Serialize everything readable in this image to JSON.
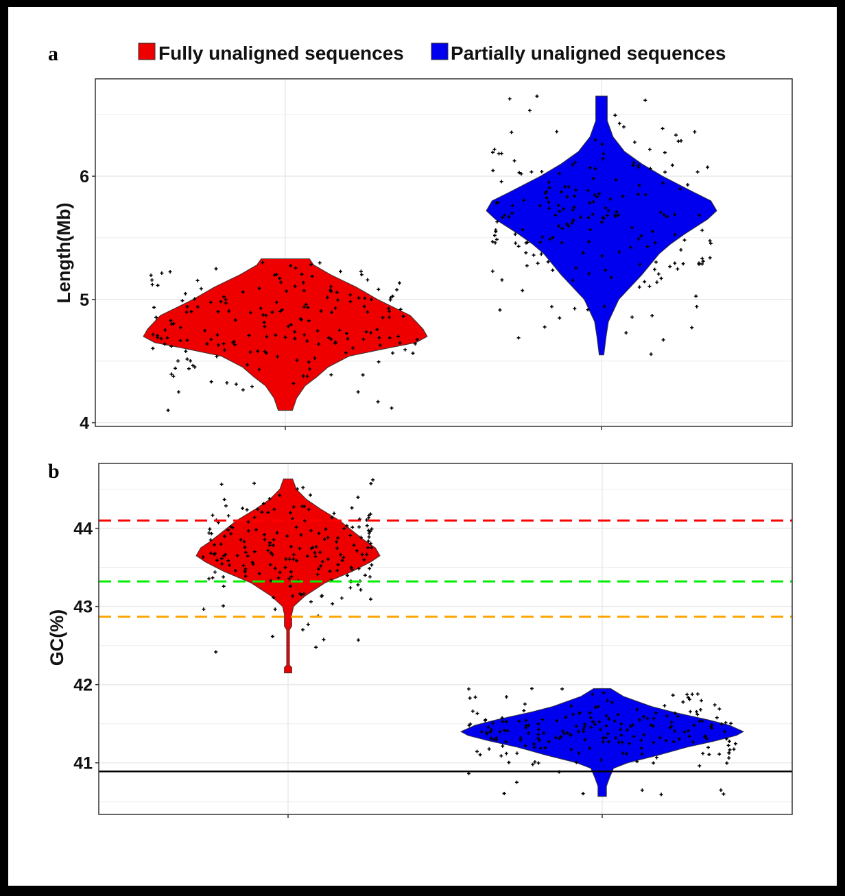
{
  "chart_data": [
    {
      "type": "violin",
      "panel_label": "a",
      "ylabel": "Length(Mb)",
      "ylim": [
        3.97,
        6.79
      ],
      "yticks": [
        4,
        5,
        6
      ],
      "grid": true,
      "legend": {
        "placement": "top",
        "entries": [
          {
            "label": "Fully unaligned sequences",
            "color": "#ee0000"
          },
          {
            "label": "Partially unaligned sequences",
            "color": "#0000ee"
          }
        ]
      },
      "series": [
        {
          "name": "Fully unaligned sequences",
          "color": "#ee0000",
          "range": [
            4.1,
            5.33
          ],
          "mode": 4.7,
          "density": [
            [
              4.1,
              0.05
            ],
            [
              4.2,
              0.08
            ],
            [
              4.3,
              0.14
            ],
            [
              4.37,
              0.22
            ],
            [
              4.45,
              0.3
            ],
            [
              4.54,
              0.45
            ],
            [
              4.6,
              0.7
            ],
            [
              4.65,
              0.92
            ],
            [
              4.7,
              1.0
            ],
            [
              4.76,
              0.97
            ],
            [
              4.87,
              0.88
            ],
            [
              5.0,
              0.65
            ],
            [
              5.1,
              0.5
            ],
            [
              5.2,
              0.32
            ],
            [
              5.28,
              0.2
            ],
            [
              5.33,
              0.17
            ]
          ]
        },
        {
          "name": "Partially unaligned sequences",
          "color": "#0000ee",
          "range": [
            4.55,
            6.65
          ],
          "mode": 5.72,
          "density": [
            [
              4.55,
              0.02
            ],
            [
              4.7,
              0.04
            ],
            [
              4.82,
              0.06
            ],
            [
              5.0,
              0.15
            ],
            [
              5.2,
              0.35
            ],
            [
              5.37,
              0.5
            ],
            [
              5.45,
              0.6
            ],
            [
              5.53,
              0.72
            ],
            [
              5.65,
              0.92
            ],
            [
              5.72,
              1.0
            ],
            [
              5.8,
              0.95
            ],
            [
              5.87,
              0.8
            ],
            [
              6.0,
              0.53
            ],
            [
              6.1,
              0.35
            ],
            [
              6.2,
              0.2
            ],
            [
              6.32,
              0.1
            ],
            [
              6.45,
              0.05
            ],
            [
              6.65,
              0.05
            ]
          ]
        }
      ]
    },
    {
      "type": "violin",
      "panel_label": "b",
      "ylabel": "GC(%)",
      "ylim": [
        40.34,
        44.83
      ],
      "yticks": [
        41,
        42,
        43,
        44
      ],
      "grid": true,
      "hlines": [
        {
          "y": 44.1,
          "color": "#ff0000",
          "style": "dashed"
        },
        {
          "y": 43.32,
          "color": "#00ee00",
          "style": "dashed"
        },
        {
          "y": 42.87,
          "color": "#ffa500",
          "style": "dashed"
        },
        {
          "y": 40.89,
          "color": "#000000",
          "style": "solid"
        }
      ],
      "series": [
        {
          "name": "Fully unaligned sequences",
          "color": "#ee0000",
          "range": [
            42.15,
            44.63
          ],
          "mode": 43.7,
          "density": [
            [
              42.15,
              0.04
            ],
            [
              42.22,
              0.04
            ],
            [
              42.25,
              0.015
            ],
            [
              42.7,
              0.015
            ],
            [
              42.75,
              0.04
            ],
            [
              42.9,
              0.04
            ],
            [
              43.0,
              0.06
            ],
            [
              43.13,
              0.18
            ],
            [
              43.3,
              0.4
            ],
            [
              43.45,
              0.7
            ],
            [
              43.57,
              0.9
            ],
            [
              43.65,
              1.0
            ],
            [
              43.75,
              0.95
            ],
            [
              43.83,
              0.85
            ],
            [
              43.95,
              0.72
            ],
            [
              44.1,
              0.56
            ],
            [
              44.25,
              0.35
            ],
            [
              44.37,
              0.2
            ],
            [
              44.5,
              0.09
            ],
            [
              44.63,
              0.05
            ]
          ]
        },
        {
          "name": "Partially unaligned sequences",
          "color": "#0000ee",
          "range": [
            40.57,
            41.95
          ],
          "mode": 41.4,
          "density": [
            [
              40.57,
              0.03
            ],
            [
              40.7,
              0.03
            ],
            [
              40.8,
              0.05
            ],
            [
              40.93,
              0.08
            ],
            [
              41.0,
              0.18
            ],
            [
              41.1,
              0.4
            ],
            [
              41.2,
              0.6
            ],
            [
              41.28,
              0.8
            ],
            [
              41.35,
              0.95
            ],
            [
              41.4,
              1.0
            ],
            [
              41.48,
              0.9
            ],
            [
              41.55,
              0.75
            ],
            [
              41.65,
              0.5
            ],
            [
              41.72,
              0.35
            ],
            [
              41.85,
              0.15
            ],
            [
              41.95,
              0.06
            ]
          ]
        }
      ]
    }
  ]
}
